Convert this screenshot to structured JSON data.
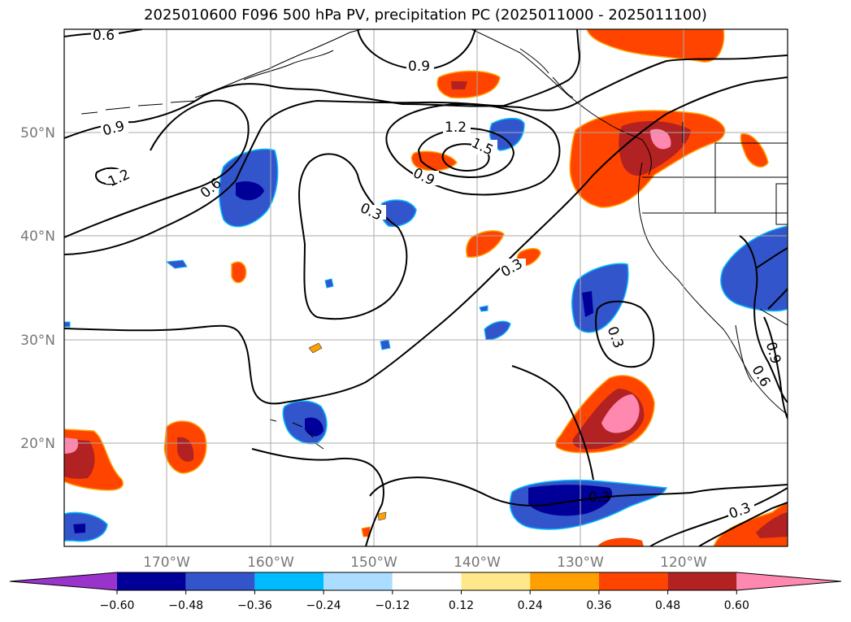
{
  "title": "2025010600 F096 500 hPa PV, precipitation PC (2025011000 - 2025011100)",
  "lon_ticks": [
    "170°W",
    "160°W",
    "150°W",
    "140°W",
    "130°W",
    "120°W"
  ],
  "lat_ticks": [
    "50°N",
    "40°N",
    "30°N",
    "20°N"
  ],
  "colorbar": {
    "labels": [
      "−0.60",
      "−0.48",
      "−0.36",
      "−0.24",
      "−0.12",
      "0.12",
      "0.24",
      "0.36",
      "0.48",
      "0.60"
    ],
    "colors": [
      "#9933cc",
      "#000099",
      "#3355cc",
      "#00bbff",
      "#aaddff",
      "#ffffff",
      "#ffe88a",
      "#ffa000",
      "#ff4400",
      "#b22222",
      "#ff88b0"
    ]
  },
  "contour_labels": [
    "0.6",
    "0.9",
    "1.2",
    "1.5",
    "0.9",
    "0.9",
    "1.2",
    "0.6",
    "0.3",
    "0.3",
    "0.3",
    "0.3",
    "0.9",
    "0.6",
    "0.3"
  ]
}
